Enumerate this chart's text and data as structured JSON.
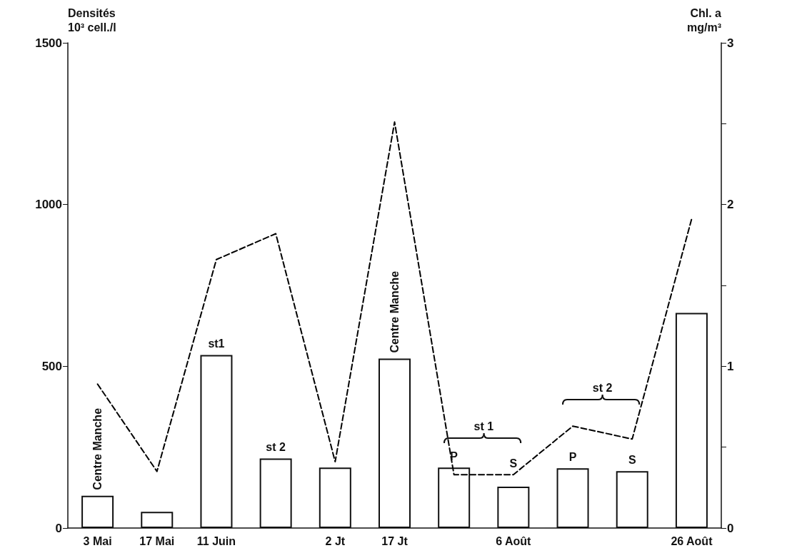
{
  "chart_data": {
    "type": "bar",
    "categories": [
      "3 Mai",
      "17 Mai",
      "11 Juin",
      null,
      "2 Jt",
      "17 Jt",
      null,
      "6 Août",
      null,
      null,
      "26 Août"
    ],
    "series": [
      {
        "color": "#ffffff",
        "values": [
          100,
          50,
          535,
          215,
          187,
          524,
          187,
          128,
          185,
          176,
          665
        ],
        "value_labels": [
          "Centre Manche",
          null,
          "st1",
          "st 2",
          null,
          "Centre Manche",
          "P",
          "S",
          "P",
          "S",
          null
        ]
      },
      {
        "type": "line",
        "axis": "y2",
        "color": "#000000",
        "line_style": "dashed",
        "marker": "none",
        "values": [
          0.89,
          0.35,
          1.66,
          1.82,
          0.41,
          2.51,
          0.33,
          0.33,
          0.63,
          0.55,
          1.91
        ]
      }
    ],
    "ylabel": "Densités\n10³ cell./l",
    "y2label": "Chl. a\nmg/m³",
    "ylim": [
      0,
      1500
    ],
    "yticks": [
      0,
      500,
      1000,
      1500
    ],
    "y2lim": [
      0,
      3
    ],
    "y2ticks": [
      0,
      {
        "value": 0.5,
        "label": null
      },
      1,
      {
        "value": 1.5,
        "label": null
      },
      2,
      {
        "value": 2.5,
        "label": null
      },
      3
    ],
    "annotations": [
      "st 1",
      "st 2"
    ],
    "grid": false
  }
}
